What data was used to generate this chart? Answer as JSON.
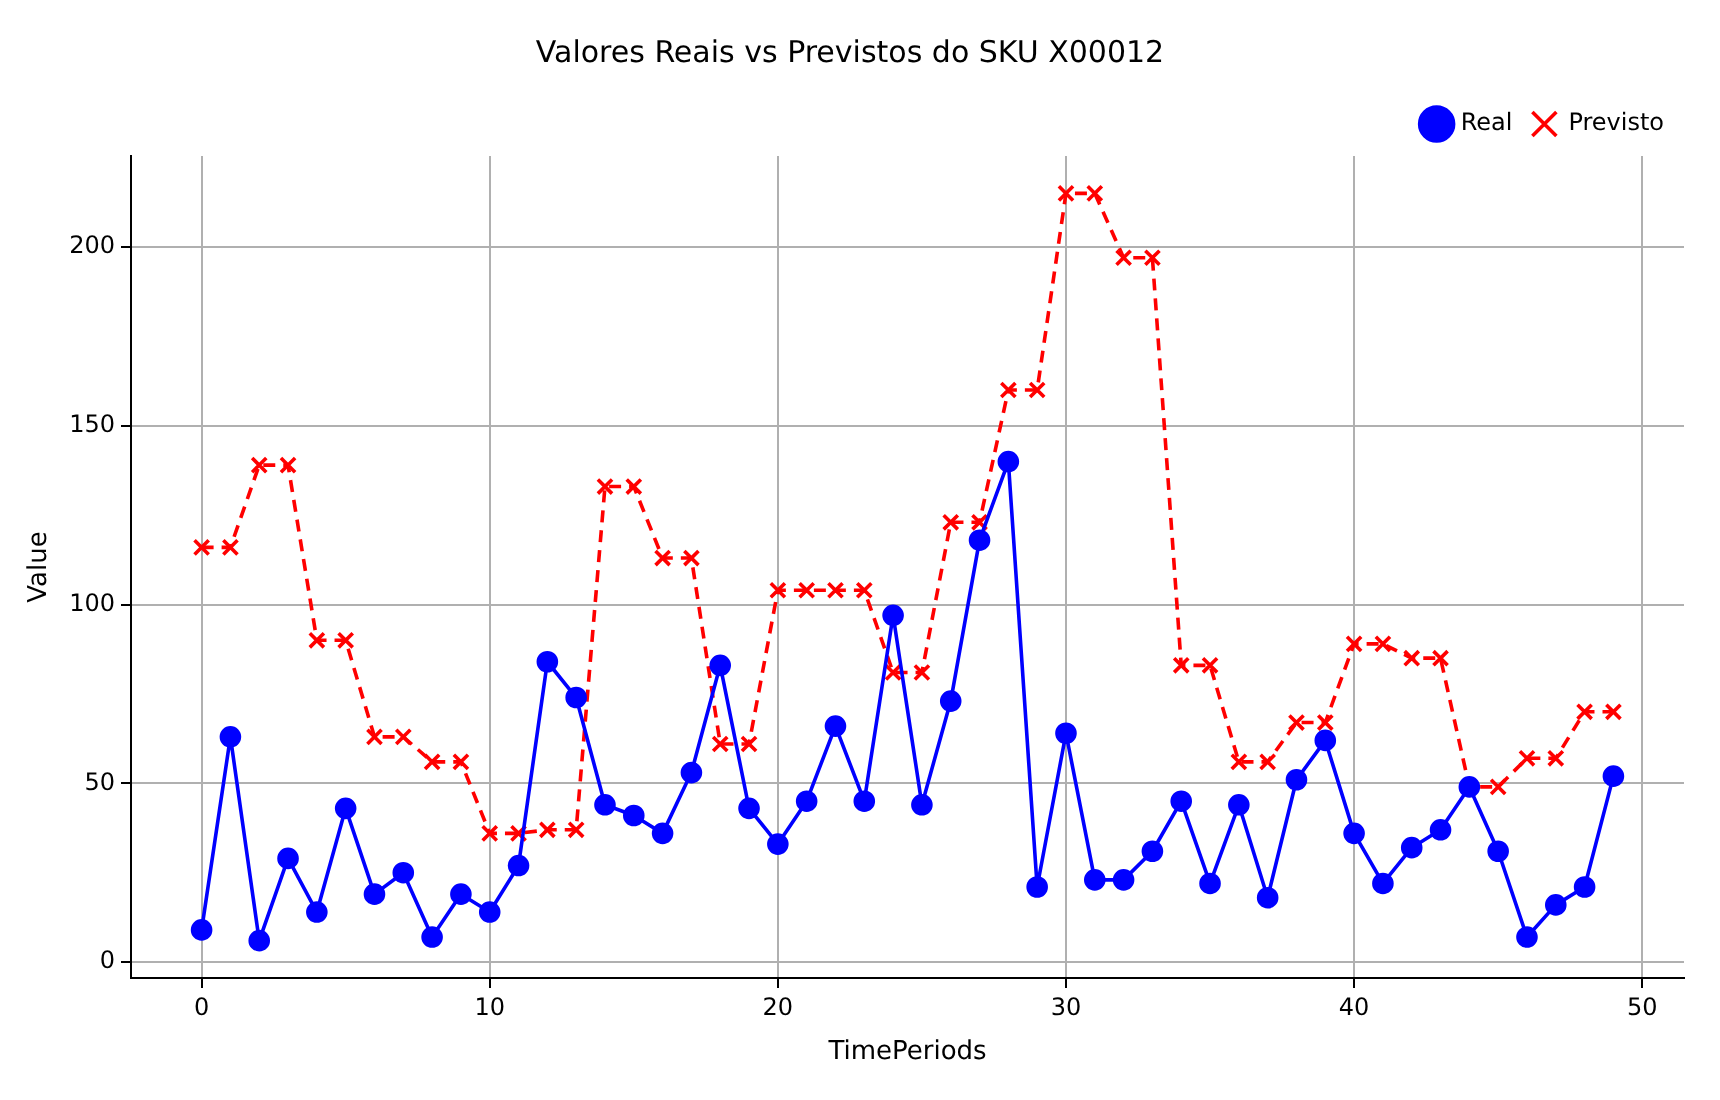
{
  "chart_data": {
    "type": "line",
    "title": "Valores Reais vs Previstos do SKU X00012",
    "xlabel": "TimePeriods",
    "ylabel": "Value",
    "x": [
      0,
      1,
      2,
      3,
      4,
      5,
      6,
      7,
      8,
      9,
      10,
      11,
      12,
      13,
      14,
      15,
      16,
      17,
      18,
      19,
      20,
      21,
      22,
      23,
      24,
      25,
      26,
      27,
      28,
      29,
      30,
      31,
      32,
      33,
      34,
      35,
      36,
      37,
      38,
      39,
      40,
      41,
      42,
      43,
      44,
      45,
      46,
      47,
      48,
      49
    ],
    "series": [
      {
        "name": "Real",
        "color": "#0000ff",
        "marker": "circle",
        "line_style": "solid",
        "values": [
          9,
          63,
          6,
          29,
          14,
          43,
          19,
          25,
          7,
          19,
          14,
          27,
          84,
          74,
          44,
          41,
          36,
          53,
          83,
          43,
          33,
          45,
          66,
          45,
          97,
          44,
          73,
          118,
          140,
          21,
          64,
          23,
          23,
          31,
          45,
          22,
          44,
          18,
          51,
          62,
          36,
          22,
          32,
          37,
          49,
          31,
          7,
          16,
          21,
          52
        ]
      },
      {
        "name": "Previsto",
        "color": "#ff0000",
        "marker": "cross",
        "line_style": "dashed",
        "values": [
          116,
          116,
          139,
          139,
          90,
          90,
          63,
          63,
          56,
          56,
          36,
          36,
          37,
          37,
          133,
          133,
          113,
          113,
          61,
          61,
          104,
          104,
          104,
          104,
          81,
          81,
          123,
          123,
          160,
          160,
          215,
          215,
          197,
          197,
          83,
          83,
          56,
          56,
          67,
          67,
          89,
          89,
          85,
          85,
          49,
          49,
          57,
          57,
          70,
          70
        ]
      }
    ],
    "xlim": [
      -2.45,
      51.45
    ],
    "xticks": [
      0,
      10,
      20,
      30,
      40,
      50
    ],
    "ylim": [
      -4.45,
      225.45
    ],
    "yticks": [
      0,
      50,
      100,
      150,
      200
    ],
    "grid": true,
    "legend": "top right"
  }
}
